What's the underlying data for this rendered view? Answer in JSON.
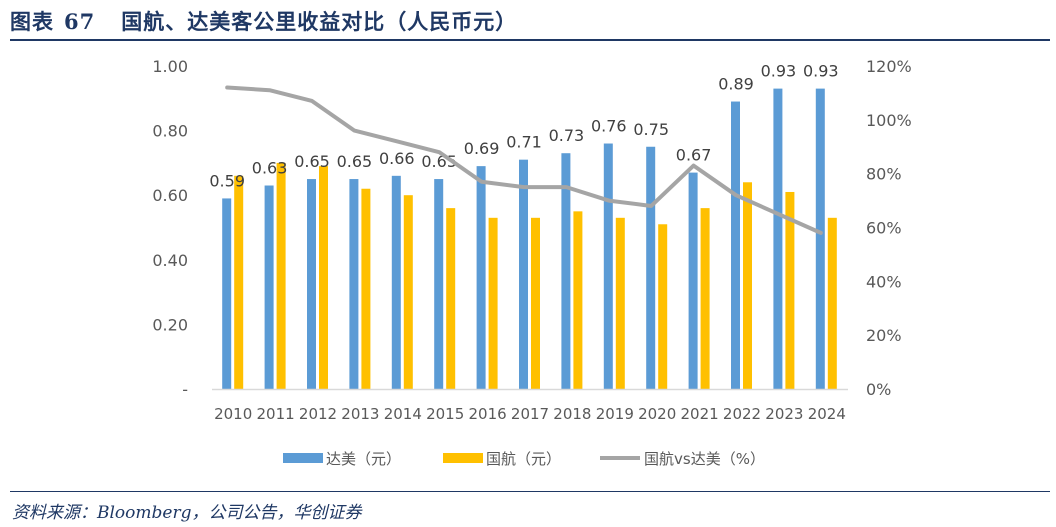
{
  "title": {
    "prefix": "图表",
    "number": "67",
    "text": "国航、达美客公里收益对比（人民币元）"
  },
  "source": "资料来源：Bloomberg，公司公告，华创证券",
  "chart_data": {
    "type": "bar",
    "categories": [
      "2010",
      "2011",
      "2012",
      "2013",
      "2014",
      "2015",
      "2016",
      "2017",
      "2018",
      "2019",
      "2020",
      "2021",
      "2022",
      "2023",
      "2024"
    ],
    "series": [
      {
        "name": "达美（元）",
        "type": "bar",
        "axis": "left",
        "color": "#5b9bd5",
        "values": [
          0.59,
          0.63,
          0.65,
          0.65,
          0.66,
          0.65,
          0.69,
          0.71,
          0.73,
          0.76,
          0.75,
          0.67,
          0.89,
          0.93,
          0.93
        ],
        "labels": [
          "0.59",
          "0.63",
          "0.65",
          "0.65",
          "0.66",
          "0.65",
          "0.69",
          "0.71",
          "0.73",
          "0.76",
          "0.75",
          "0.67",
          "0.89",
          "0.93",
          "0.93"
        ]
      },
      {
        "name": "国航（元）",
        "type": "bar",
        "axis": "left",
        "color": "#ffc000",
        "values": [
          0.66,
          0.7,
          0.69,
          0.62,
          0.6,
          0.56,
          0.53,
          0.53,
          0.55,
          0.53,
          0.51,
          0.56,
          0.64,
          0.61,
          0.53
        ]
      },
      {
        "name": "国航vs达美（%）",
        "type": "line",
        "axis": "right",
        "color": "#a5a5a5",
        "values": [
          112,
          111,
          107,
          96,
          92,
          88,
          77,
          75,
          75,
          70,
          68,
          83,
          72,
          65,
          58
        ]
      }
    ],
    "left_axis": {
      "ticks": [
        "-",
        "0.20",
        "0.40",
        "0.60",
        "0.80",
        "1.00"
      ],
      "range": [
        0,
        1.0
      ]
    },
    "right_axis": {
      "ticks": [
        "0%",
        "20%",
        "40%",
        "60%",
        "80%",
        "100%",
        "120%"
      ],
      "range": [
        0,
        120
      ]
    },
    "legend": "bottom",
    "grid": false
  }
}
